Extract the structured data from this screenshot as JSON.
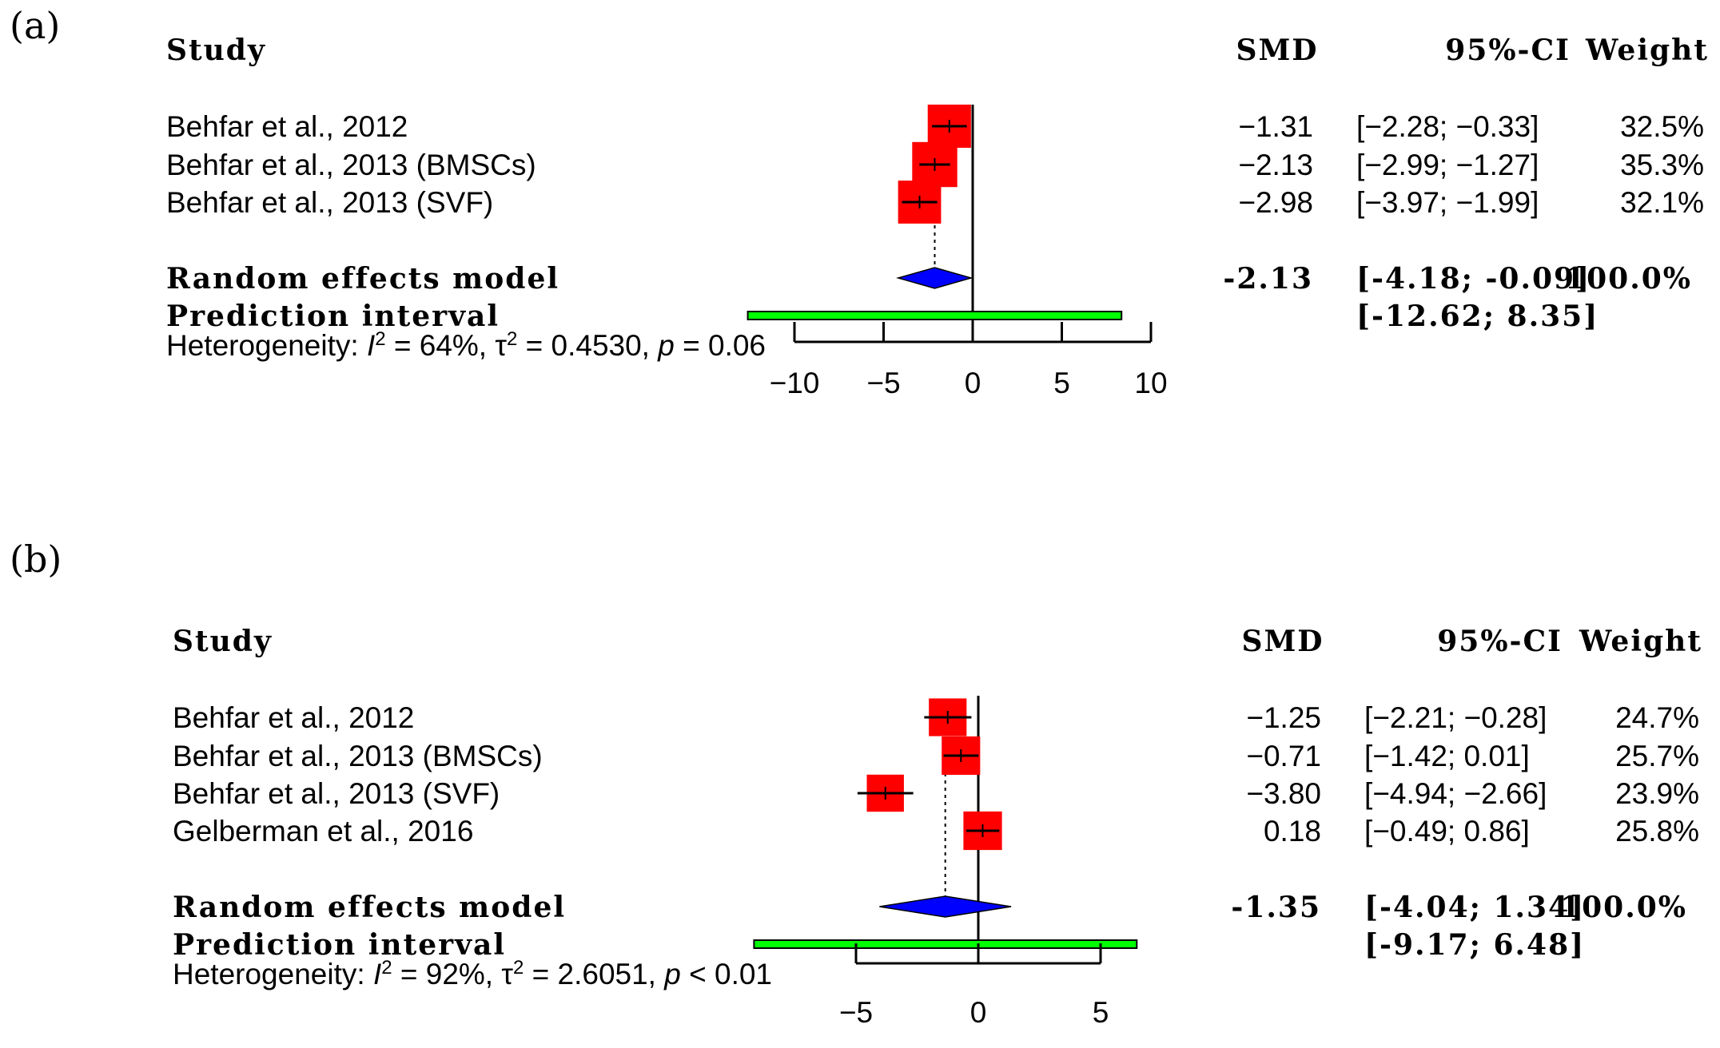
{
  "chart_data": [
    {
      "type": "forest",
      "panel_label": "(a)",
      "headers": {
        "study": "Study",
        "smd": "SMD",
        "ci": "95%-CI",
        "weight": "Weight"
      },
      "studies": [
        {
          "name": "Behfar et al., 2012",
          "smd": -1.31,
          "lower": -2.28,
          "upper": -0.33,
          "smd_text": "−1.31",
          "ci_text": "[−2.28; −0.33]",
          "weight_text": "32.5%",
          "weight": 32.5
        },
        {
          "name": "Behfar et al., 2013 (BMSCs)",
          "smd": -2.13,
          "lower": -2.99,
          "upper": -1.27,
          "smd_text": "−2.13",
          "ci_text": "[−2.99; −1.27]",
          "weight_text": "35.3%",
          "weight": 35.3
        },
        {
          "name": "Behfar et al., 2013 (SVF)",
          "smd": -2.98,
          "lower": -3.97,
          "upper": -1.99,
          "smd_text": "−2.98",
          "ci_text": "[−3.97; −1.99]",
          "weight_text": "32.1%",
          "weight": 32.1
        }
      ],
      "summary": {
        "label": "Random effects model",
        "smd": -2.13,
        "lower": -4.18,
        "upper": -0.09,
        "smd_text": "-2.13",
        "ci_text": "[-4.18; -0.09]",
        "weight_text": "100.0%"
      },
      "prediction": {
        "label": "Prediction interval",
        "lower": -12.62,
        "upper": 8.35,
        "ci_text": "[-12.62; 8.35]"
      },
      "heterogeneity": {
        "prefix": "Heterogeneity: ",
        "i2_symbol": "I",
        "i2_value": " = 64%, ",
        "tau_symbol": "τ",
        "tau_value": " = 0.4530, ",
        "p_symbol": "p",
        "p_value": " = 0.06"
      },
      "xticks": [
        -10,
        -5,
        0,
        5,
        10
      ],
      "xtick_labels": [
        "−10",
        "−5",
        "0",
        "5",
        "10"
      ],
      "xlim": [
        -10,
        10
      ]
    },
    {
      "type": "forest",
      "panel_label": "(b)",
      "headers": {
        "study": "Study",
        "smd": "SMD",
        "ci": "95%-CI",
        "weight": "Weight"
      },
      "studies": [
        {
          "name": "Behfar et al., 2012",
          "smd": -1.25,
          "lower": -2.21,
          "upper": -0.28,
          "smd_text": "−1.25",
          "ci_text": "[−2.21; −0.28]",
          "weight_text": "24.7%",
          "weight": 24.7
        },
        {
          "name": "Behfar et al., 2013 (BMSCs)",
          "smd": -0.71,
          "lower": -1.42,
          "upper": 0.01,
          "smd_text": "−0.71",
          "ci_text": "[−1.42;  0.01]",
          "weight_text": "25.7%",
          "weight": 25.7
        },
        {
          "name": "Behfar et al., 2013 (SVF)",
          "smd": -3.8,
          "lower": -4.94,
          "upper": -2.66,
          "smd_text": "−3.80",
          "ci_text": "[−4.94; −2.66]",
          "weight_text": "23.9%",
          "weight": 23.9
        },
        {
          "name": "Gelberman et al., 2016",
          "smd": 0.18,
          "lower": -0.49,
          "upper": 0.86,
          "smd_text": "0.18",
          "ci_text": "[−0.49;  0.86]",
          "weight_text": "25.8%",
          "weight": 25.8
        }
      ],
      "summary": {
        "label": "Random effects model",
        "smd": -1.35,
        "lower": -4.04,
        "upper": 1.34,
        "smd_text": "-1.35",
        "ci_text": "[-4.04; 1.34]",
        "weight_text": "100.0%"
      },
      "prediction": {
        "label": "Prediction interval",
        "lower": -9.17,
        "upper": 6.48,
        "ci_text": "[-9.17; 6.48]"
      },
      "heterogeneity": {
        "prefix": "Heterogeneity: ",
        "i2_symbol": "I",
        "i2_value": " = 92%, ",
        "tau_symbol": "τ",
        "tau_value": " = 2.6051, ",
        "p_symbol": "p",
        "p_value": " < 0.01"
      },
      "xticks": [
        -5,
        0,
        5
      ],
      "xtick_labels": [
        "−5",
        "0",
        "5"
      ],
      "xlim": [
        -5,
        5
      ]
    }
  ],
  "colors": {
    "study_box": "#ff0000",
    "summary_diamond": "#0000ff",
    "prediction_bar": "#00ff00",
    "lines": "#000000"
  }
}
